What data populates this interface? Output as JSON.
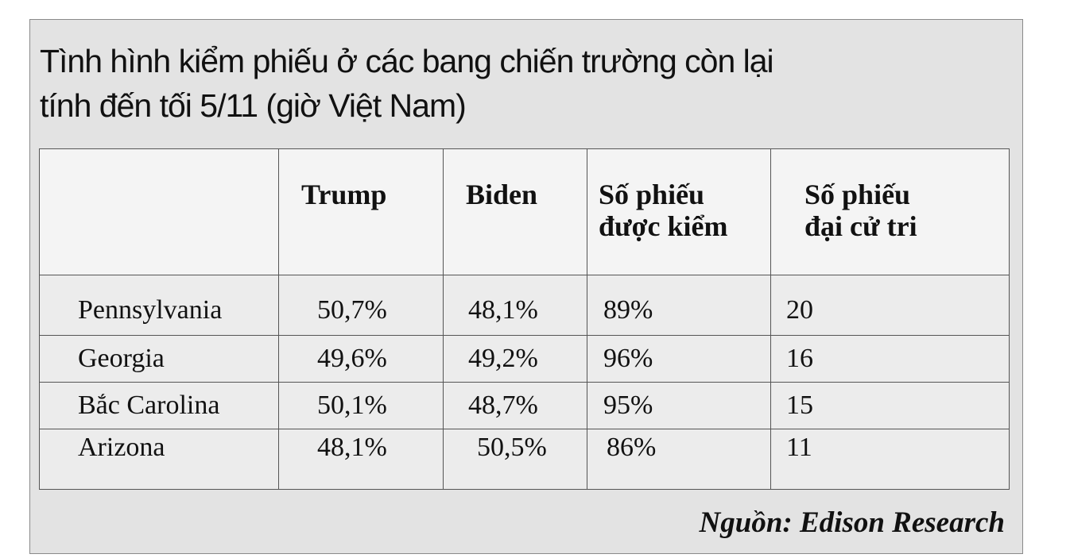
{
  "title": {
    "line1": "Tình hình kiểm phiếu ở các bang chiến trường còn lại",
    "line2": "tính đến tối 5/11 (giờ Việt Nam)"
  },
  "table": {
    "headers": [
      "",
      "Trump",
      "Biden",
      "Số phiếu được kiểm",
      "Số phiếu đại cử tri"
    ],
    "header_lines": {
      "counted": [
        "Số phiếu",
        "được kiểm"
      ],
      "electoral": [
        "Số phiếu",
        "đại cử tri"
      ]
    },
    "rows": [
      {
        "state": "Pennsylvania",
        "trump": "50,7%",
        "biden": "48,1%",
        "counted": "89%",
        "electoral": "20"
      },
      {
        "state": "Georgia",
        "trump": "49,6%",
        "biden": "49,2%",
        "counted": "96%",
        "electoral": "16"
      },
      {
        "state": "Bắc Carolina",
        "trump": "50,1%",
        "biden": "48,7%",
        "counted": "95%",
        "electoral": "15"
      },
      {
        "state": "Arizona",
        "trump": "48,1%",
        "biden": "50,5%",
        "counted": "86%",
        "electoral": "11"
      }
    ]
  },
  "source": "Nguồn: Edison Research"
}
